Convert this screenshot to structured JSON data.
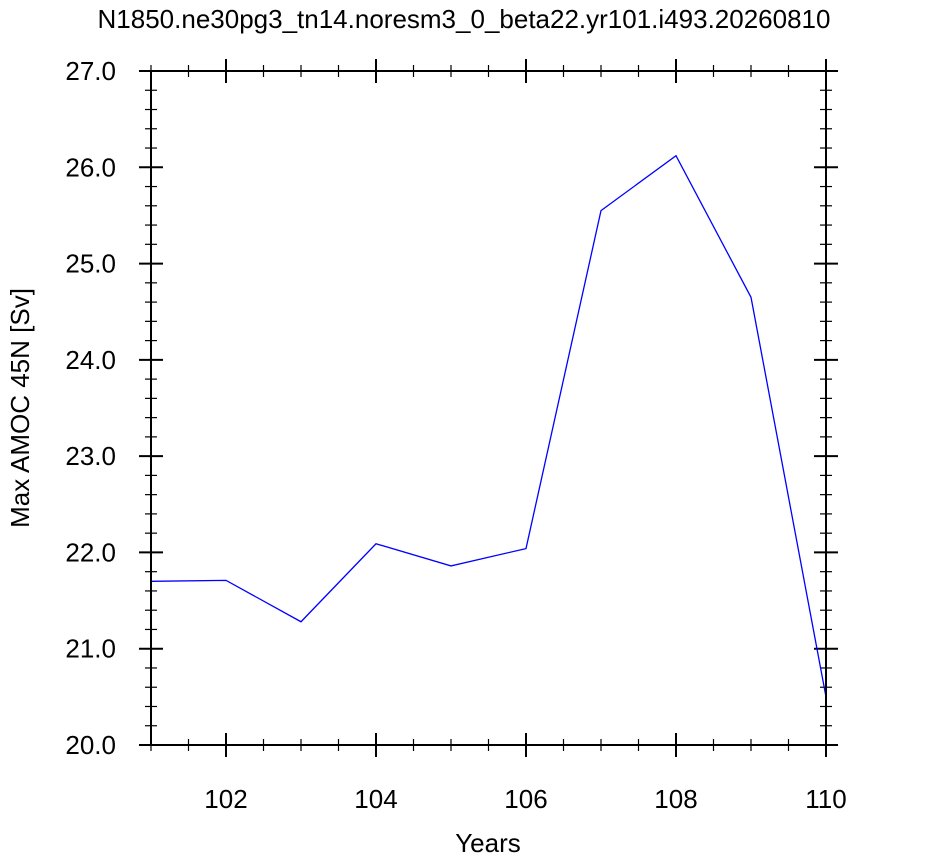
{
  "chart_data": {
    "type": "line",
    "title": "N1850.ne30pg3_tn14.noresm3_0_beta22.yr101.i493.20260810",
    "xlabel": "Years",
    "ylabel": "Max AMOC 45N [Sv]",
    "xlim": [
      101,
      110
    ],
    "ylim": [
      20.0,
      27.0
    ],
    "x_ticks": [
      102,
      104,
      106,
      108,
      110
    ],
    "y_ticks": [
      20.0,
      21.0,
      22.0,
      23.0,
      24.0,
      25.0,
      26.0,
      27.0
    ],
    "x_tick_labels": [
      "102",
      "104",
      "106",
      "108",
      "110"
    ],
    "y_tick_labels": [
      "20.0",
      "21.0",
      "22.0",
      "23.0",
      "24.0",
      "25.0",
      "26.0",
      "27.0"
    ],
    "grid": false,
    "legend": "none",
    "series": [
      {
        "color": "#0000ff",
        "x": [
          101,
          102,
          103,
          104,
          105,
          106,
          107,
          108,
          109,
          110
        ],
        "y": [
          21.7,
          21.71,
          21.28,
          22.09,
          21.86,
          22.04,
          25.55,
          26.12,
          24.65,
          20.5
        ]
      }
    ]
  }
}
